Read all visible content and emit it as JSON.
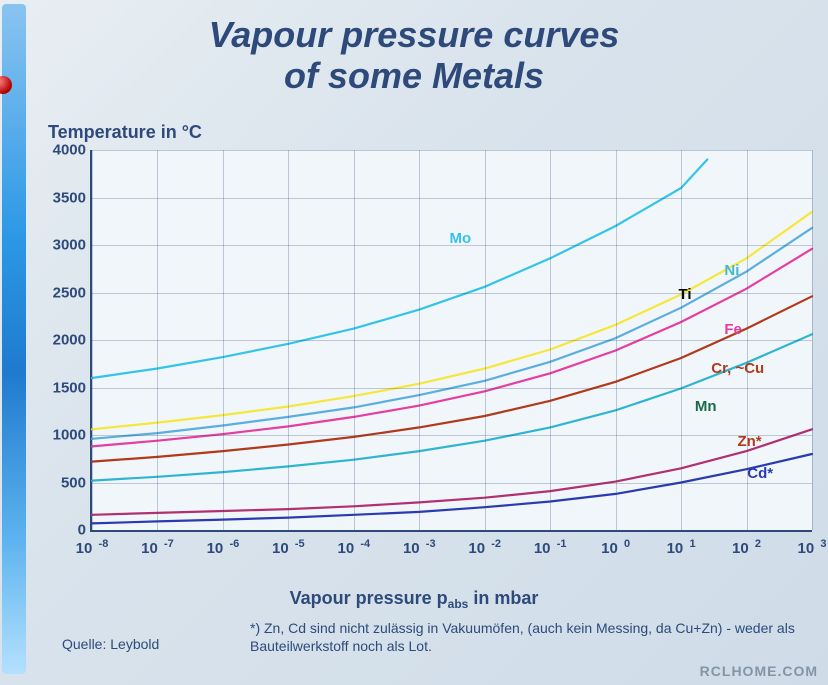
{
  "title_line1": "Vapour pressure curves",
  "title_line2": "of some Metals",
  "ylabel": "Temperature in °C",
  "xlabel_pre": "Vapour pressure p",
  "xlabel_sub": "abs",
  "xlabel_post": " in mbar",
  "footnote": "*) Zn, Cd sind nicht zulässig in Vakuumöfen,  (auch kein Messing, da Cu+Zn) - weder als Bauteilwerkstoff noch als Lot.",
  "source_label": "Quelle: Leybold",
  "watermark": "RCLHOME.COM",
  "chart": {
    "type": "line-log-x",
    "xlog_min_exp": -8,
    "xlog_max_exp": 3,
    "ymin": 0,
    "ymax": 4000,
    "ytick_step": 500,
    "background": "#f1f6fa",
    "axis_color": "#2e4a7a",
    "grid_color": "rgba(46,74,122,.28)",
    "line_width": 2.2,
    "xtick_exps": [
      -8,
      -7,
      -6,
      -5,
      -4,
      -3,
      -2,
      -1,
      0,
      1,
      2,
      3
    ],
    "series": [
      {
        "name": "Mo",
        "color": "#33c4e8",
        "label_color": "#33c4e8",
        "label_x_exp": -2.6,
        "label_y": 3050,
        "data": [
          [
            -8,
            1600
          ],
          [
            -7,
            1700
          ],
          [
            -6,
            1820
          ],
          [
            -5,
            1960
          ],
          [
            -4,
            2120
          ],
          [
            -3,
            2320
          ],
          [
            -2,
            2560
          ],
          [
            -1,
            2860
          ],
          [
            0,
            3200
          ],
          [
            1,
            3600
          ],
          [
            1.4,
            3900
          ]
        ]
      },
      {
        "name": "Ni",
        "color": "#f5e83a",
        "label_color": "#40b8d0",
        "label_x_exp": 1.6,
        "label_y": 2720,
        "data": [
          [
            -8,
            1060
          ],
          [
            -7,
            1130
          ],
          [
            -6,
            1210
          ],
          [
            -5,
            1300
          ],
          [
            -4,
            1410
          ],
          [
            -3,
            1540
          ],
          [
            -2,
            1700
          ],
          [
            -1,
            1900
          ],
          [
            0,
            2160
          ],
          [
            1,
            2480
          ],
          [
            2,
            2860
          ],
          [
            3,
            3350
          ]
        ]
      },
      {
        "name": "Ti",
        "color": "#5aaee0",
        "label_color": "#0a0a0a",
        "label_x_exp": 0.9,
        "label_y": 2460,
        "data": [
          [
            -8,
            960
          ],
          [
            -7,
            1020
          ],
          [
            -6,
            1100
          ],
          [
            -5,
            1190
          ],
          [
            -4,
            1290
          ],
          [
            -3,
            1420
          ],
          [
            -2,
            1570
          ],
          [
            -1,
            1770
          ],
          [
            0,
            2020
          ],
          [
            1,
            2340
          ],
          [
            2,
            2720
          ],
          [
            3,
            3180
          ]
        ]
      },
      {
        "name": "Fe",
        "color": "#e63ea0",
        "label_color": "#e63ea0",
        "label_x_exp": 1.6,
        "label_y": 2100,
        "data": [
          [
            -8,
            880
          ],
          [
            -7,
            940
          ],
          [
            -6,
            1010
          ],
          [
            -5,
            1090
          ],
          [
            -4,
            1190
          ],
          [
            -3,
            1310
          ],
          [
            -2,
            1460
          ],
          [
            -1,
            1650
          ],
          [
            0,
            1890
          ],
          [
            1,
            2190
          ],
          [
            2,
            2540
          ],
          [
            3,
            2960
          ]
        ]
      },
      {
        "name": "Cr, ~Cu",
        "color": "#b23a1a",
        "label_color": "#b23a1a",
        "label_x_exp": 1.4,
        "label_y": 1680,
        "data": [
          [
            -8,
            720
          ],
          [
            -7,
            770
          ],
          [
            -6,
            830
          ],
          [
            -5,
            900
          ],
          [
            -4,
            980
          ],
          [
            -3,
            1080
          ],
          [
            -2,
            1200
          ],
          [
            -1,
            1360
          ],
          [
            0,
            1560
          ],
          [
            1,
            1810
          ],
          [
            2,
            2120
          ],
          [
            3,
            2460
          ]
        ]
      },
      {
        "name": "Mn",
        "color": "#2fb5d2",
        "label_color": "#186a4a",
        "label_x_exp": 1.15,
        "label_y": 1280,
        "data": [
          [
            -8,
            520
          ],
          [
            -7,
            560
          ],
          [
            -6,
            610
          ],
          [
            -5,
            670
          ],
          [
            -4,
            740
          ],
          [
            -3,
            830
          ],
          [
            -2,
            940
          ],
          [
            -1,
            1080
          ],
          [
            0,
            1260
          ],
          [
            1,
            1490
          ],
          [
            2,
            1760
          ],
          [
            3,
            2060
          ]
        ]
      },
      {
        "name": "Zn*",
        "color": "#b03070",
        "label_color": "#b23a1a",
        "label_x_exp": 1.8,
        "label_y": 920,
        "data": [
          [
            -8,
            160
          ],
          [
            -7,
            180
          ],
          [
            -6,
            200
          ],
          [
            -5,
            220
          ],
          [
            -4,
            250
          ],
          [
            -3,
            290
          ],
          [
            -2,
            340
          ],
          [
            -1,
            410
          ],
          [
            0,
            510
          ],
          [
            1,
            650
          ],
          [
            2,
            830
          ],
          [
            3,
            1060
          ]
        ]
      },
      {
        "name": "Cd*",
        "color": "#2a3ab0",
        "label_color": "#2a3ab0",
        "label_x_exp": 1.95,
        "label_y": 580,
        "data": [
          [
            -8,
            70
          ],
          [
            -7,
            90
          ],
          [
            -6,
            110
          ],
          [
            -5,
            130
          ],
          [
            -4,
            160
          ],
          [
            -3,
            190
          ],
          [
            -2,
            240
          ],
          [
            -1,
            300
          ],
          [
            0,
            380
          ],
          [
            1,
            500
          ],
          [
            2,
            640
          ],
          [
            3,
            800
          ]
        ]
      }
    ]
  }
}
